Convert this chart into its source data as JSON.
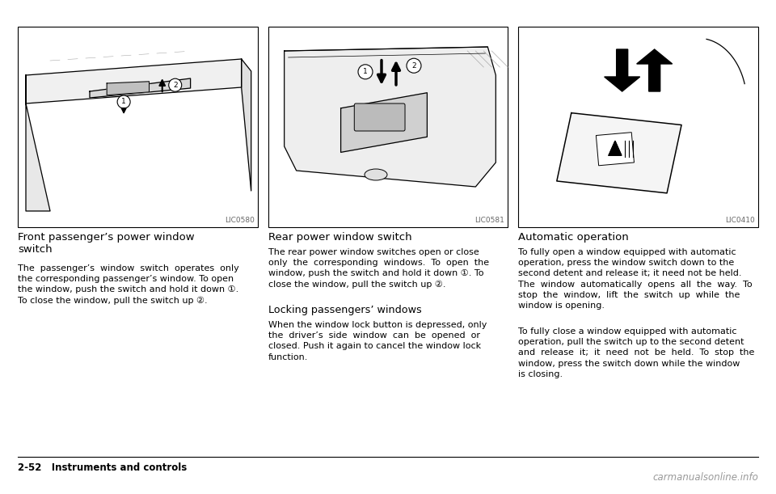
{
  "bg_color": "#ffffff",
  "col1_img_label": "LIC0580",
  "col1_title": "Front passenger’s power window\nswitch",
  "col1_body": "The  passenger’s  window  switch  operates  only\nthe corresponding passenger’s window. To open\nthe window, push the switch and hold it down ①.\nTo close the window, pull the switch up ②.",
  "col2_img_label": "LIC0581",
  "col2_title": "Rear power window switch",
  "col2_body1": "The rear power window switches open or close\nonly  the  corresponding  windows.  To  open  the\nwindow, push the switch and hold it down ①. To\nclose the window, pull the switch up ②.",
  "col2_subtitle": "Locking passengers’ windows",
  "col2_body2": "When the window lock button is depressed, only\nthe  driver’s  side  window  can  be  opened  or\nclosed. Push it again to cancel the window lock\nfunction.",
  "col3_img_label": "LIC0410",
  "col3_title": "Automatic operation",
  "col3_body1": "To fully open a window equipped with automatic\noperation, press the window switch down to the\nsecond detent and release it; it need not be held.\nThe  window  automatically  opens  all  the  way.  To\nstop  the  window,  lift  the  switch  up  while  the\nwindow is opening.",
  "col3_body2": "To fully close a window equipped with automatic\noperation, pull the switch up to the second detent\nand  release  it;  it  need  not  be  held.  To  stop  the\nwindow, press the switch down while the window\nis closing.",
  "footer_left": "2-52   Instruments and controls",
  "footer_right": "carmanualsonline.info"
}
